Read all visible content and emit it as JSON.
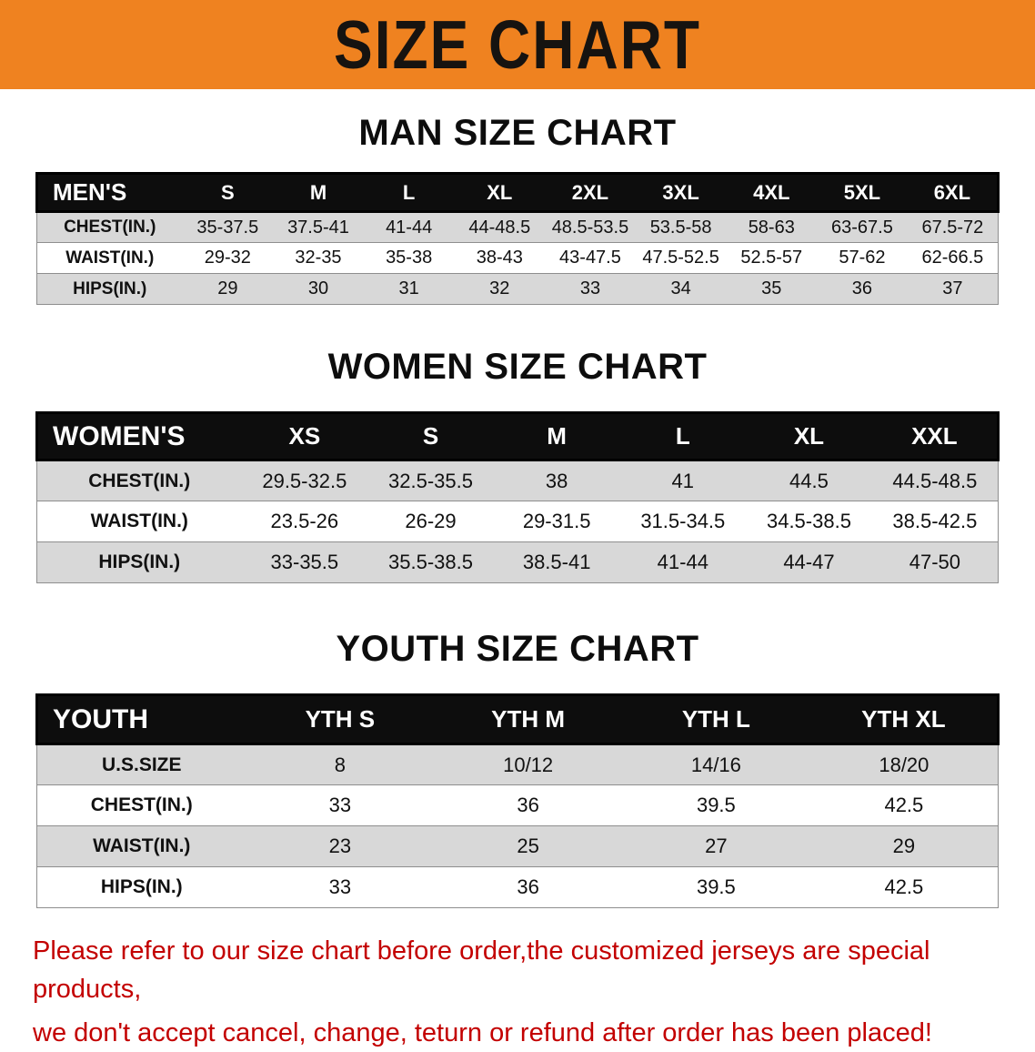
{
  "banner": {
    "title": "SIZE CHART"
  },
  "colors": {
    "banner_bg": "#ef8220",
    "header_bg": "#0d0d0d",
    "stripe": "#d8d8d8",
    "note_color": "#c30000"
  },
  "sections": [
    {
      "id": "men",
      "heading": "MAN SIZE CHART",
      "table": {
        "first_col_header": "MEN'S",
        "columns": [
          "S",
          "M",
          "L",
          "XL",
          "2XL",
          "3XL",
          "4XL",
          "5XL",
          "6XL"
        ],
        "rows": [
          {
            "label": "CHEST(IN.)",
            "values": [
              "35-37.5",
              "37.5-41",
              "41-44",
              "44-48.5",
              "48.5-53.5",
              "53.5-58",
              "58-63",
              "63-67.5",
              "67.5-72"
            ]
          },
          {
            "label": "WAIST(IN.)",
            "values": [
              "29-32",
              "32-35",
              "35-38",
              "38-43",
              "43-47.5",
              "47.5-52.5",
              "52.5-57",
              "57-62",
              "62-66.5"
            ]
          },
          {
            "label": "HIPS(IN.)",
            "values": [
              "29",
              "30",
              "31",
              "32",
              "33",
              "34",
              "35",
              "36",
              "37"
            ]
          }
        ]
      }
    },
    {
      "id": "women",
      "heading": "WOMEN SIZE CHART",
      "table": {
        "first_col_header": "WOMEN'S",
        "columns": [
          "XS",
          "S",
          "M",
          "L",
          "XL",
          "XXL"
        ],
        "rows": [
          {
            "label": "CHEST(IN.)",
            "values": [
              "29.5-32.5",
              "32.5-35.5",
              "38",
              "41",
              "44.5",
              "44.5-48.5"
            ]
          },
          {
            "label": "WAIST(IN.)",
            "values": [
              "23.5-26",
              "26-29",
              "29-31.5",
              "31.5-34.5",
              "34.5-38.5",
              "38.5-42.5"
            ]
          },
          {
            "label": "HIPS(IN.)",
            "values": [
              "33-35.5",
              "35.5-38.5",
              "38.5-41",
              "41-44",
              "44-47",
              "47-50"
            ]
          }
        ]
      }
    },
    {
      "id": "youth",
      "heading": "YOUTH SIZE CHART",
      "table": {
        "first_col_header": "YOUTH",
        "columns": [
          "YTH S",
          "YTH M",
          "YTH L",
          "YTH XL"
        ],
        "rows": [
          {
            "label": "U.S.SIZE",
            "values": [
              "8",
              "10/12",
              "14/16",
              "18/20"
            ]
          },
          {
            "label": "CHEST(IN.)",
            "values": [
              "33",
              "36",
              "39.5",
              "42.5"
            ]
          },
          {
            "label": "WAIST(IN.)",
            "values": [
              "23",
              "25",
              "27",
              "29"
            ]
          },
          {
            "label": "HIPS(IN.)",
            "values": [
              "33",
              "36",
              "39.5",
              "42.5"
            ]
          }
        ]
      }
    }
  ],
  "note": {
    "line1": "Please refer to our size chart before order,the customized jerseys are special products,",
    "line2": "we don't accept cancel, change, teturn or refund after order has been placed!"
  }
}
